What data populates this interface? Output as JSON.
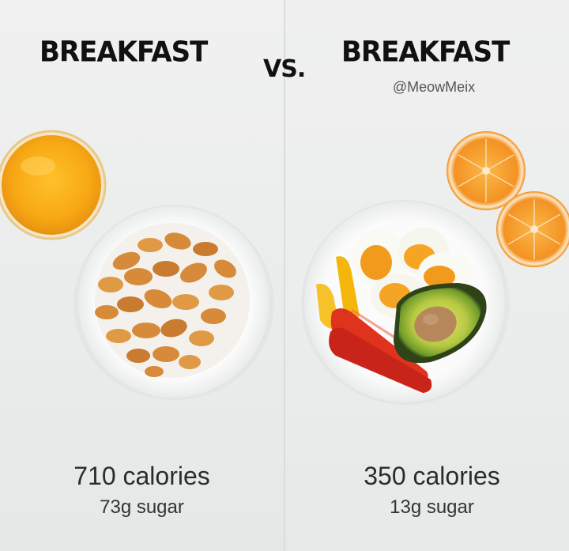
{
  "left": {
    "title": "BREAKFAST",
    "calories": "710 calories",
    "sugar": "73g sugar"
  },
  "vs_label": "VS.",
  "right": {
    "title": "BREAKFAST",
    "handle": "@MeowMeix",
    "calories": "350 calories",
    "sugar": "13g sugar"
  },
  "colors": {
    "orange_juice": "#f7a814",
    "cornflakes": "#d68a3a",
    "avocado": "#6f9a2a",
    "red_pepper": "#e0331d",
    "yellow_pepper": "#f5b60c",
    "egg_yolk": "#f29a1c",
    "orange": "#f39222"
  }
}
